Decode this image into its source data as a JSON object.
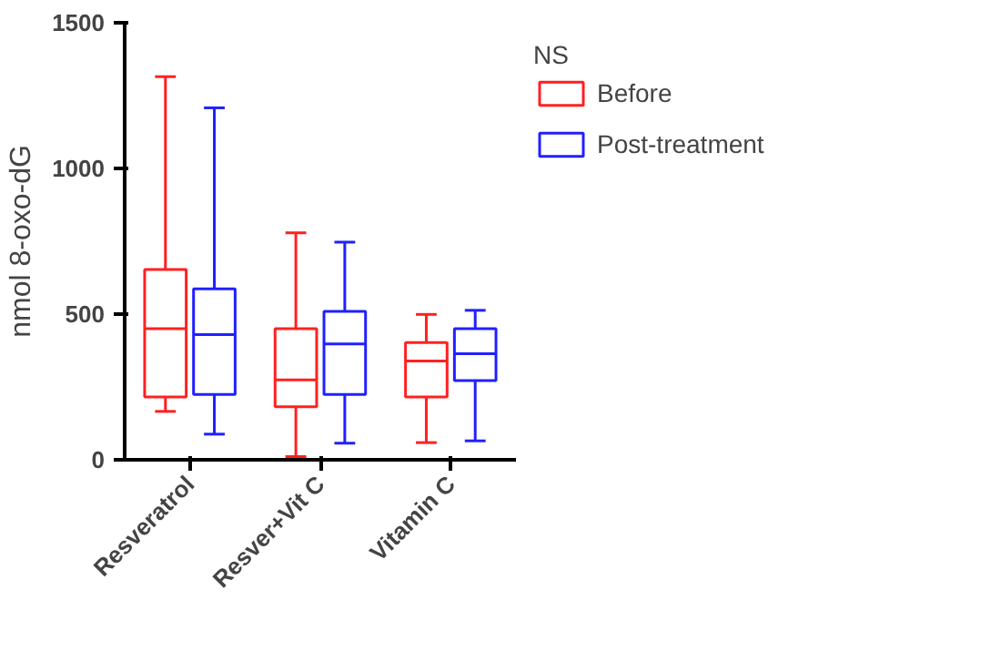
{
  "chart_data": {
    "type": "box",
    "ylabel": "nmol 8-oxo-dG",
    "legend_title": "NS",
    "legend": "top right",
    "categories": [
      "Resveratrol",
      "Resver+Vit C",
      "Vitamin C"
    ],
    "ylim": [
      0,
      1500
    ],
    "yticks": [
      0,
      500,
      1000,
      1500
    ],
    "grid": false,
    "series": [
      {
        "name": "Before",
        "color": "#ff2020",
        "boxes": [
          {
            "low": 166,
            "q1": 216,
            "median": 450,
            "q3": 653,
            "high": 1315
          },
          {
            "low": 11,
            "q1": 182,
            "median": 274,
            "q3": 450,
            "high": 779
          },
          {
            "low": 59,
            "q1": 216,
            "median": 339,
            "q3": 402,
            "high": 499
          }
        ]
      },
      {
        "name": "Post-treatment",
        "color": "#2020ff",
        "boxes": [
          {
            "low": 88,
            "q1": 224,
            "median": 430,
            "q3": 587,
            "high": 1208
          },
          {
            "low": 57,
            "q1": 224,
            "median": 398,
            "q3": 509,
            "high": 747
          },
          {
            "low": 65,
            "q1": 272,
            "median": 364,
            "q3": 450,
            "high": 513
          }
        ]
      }
    ]
  }
}
